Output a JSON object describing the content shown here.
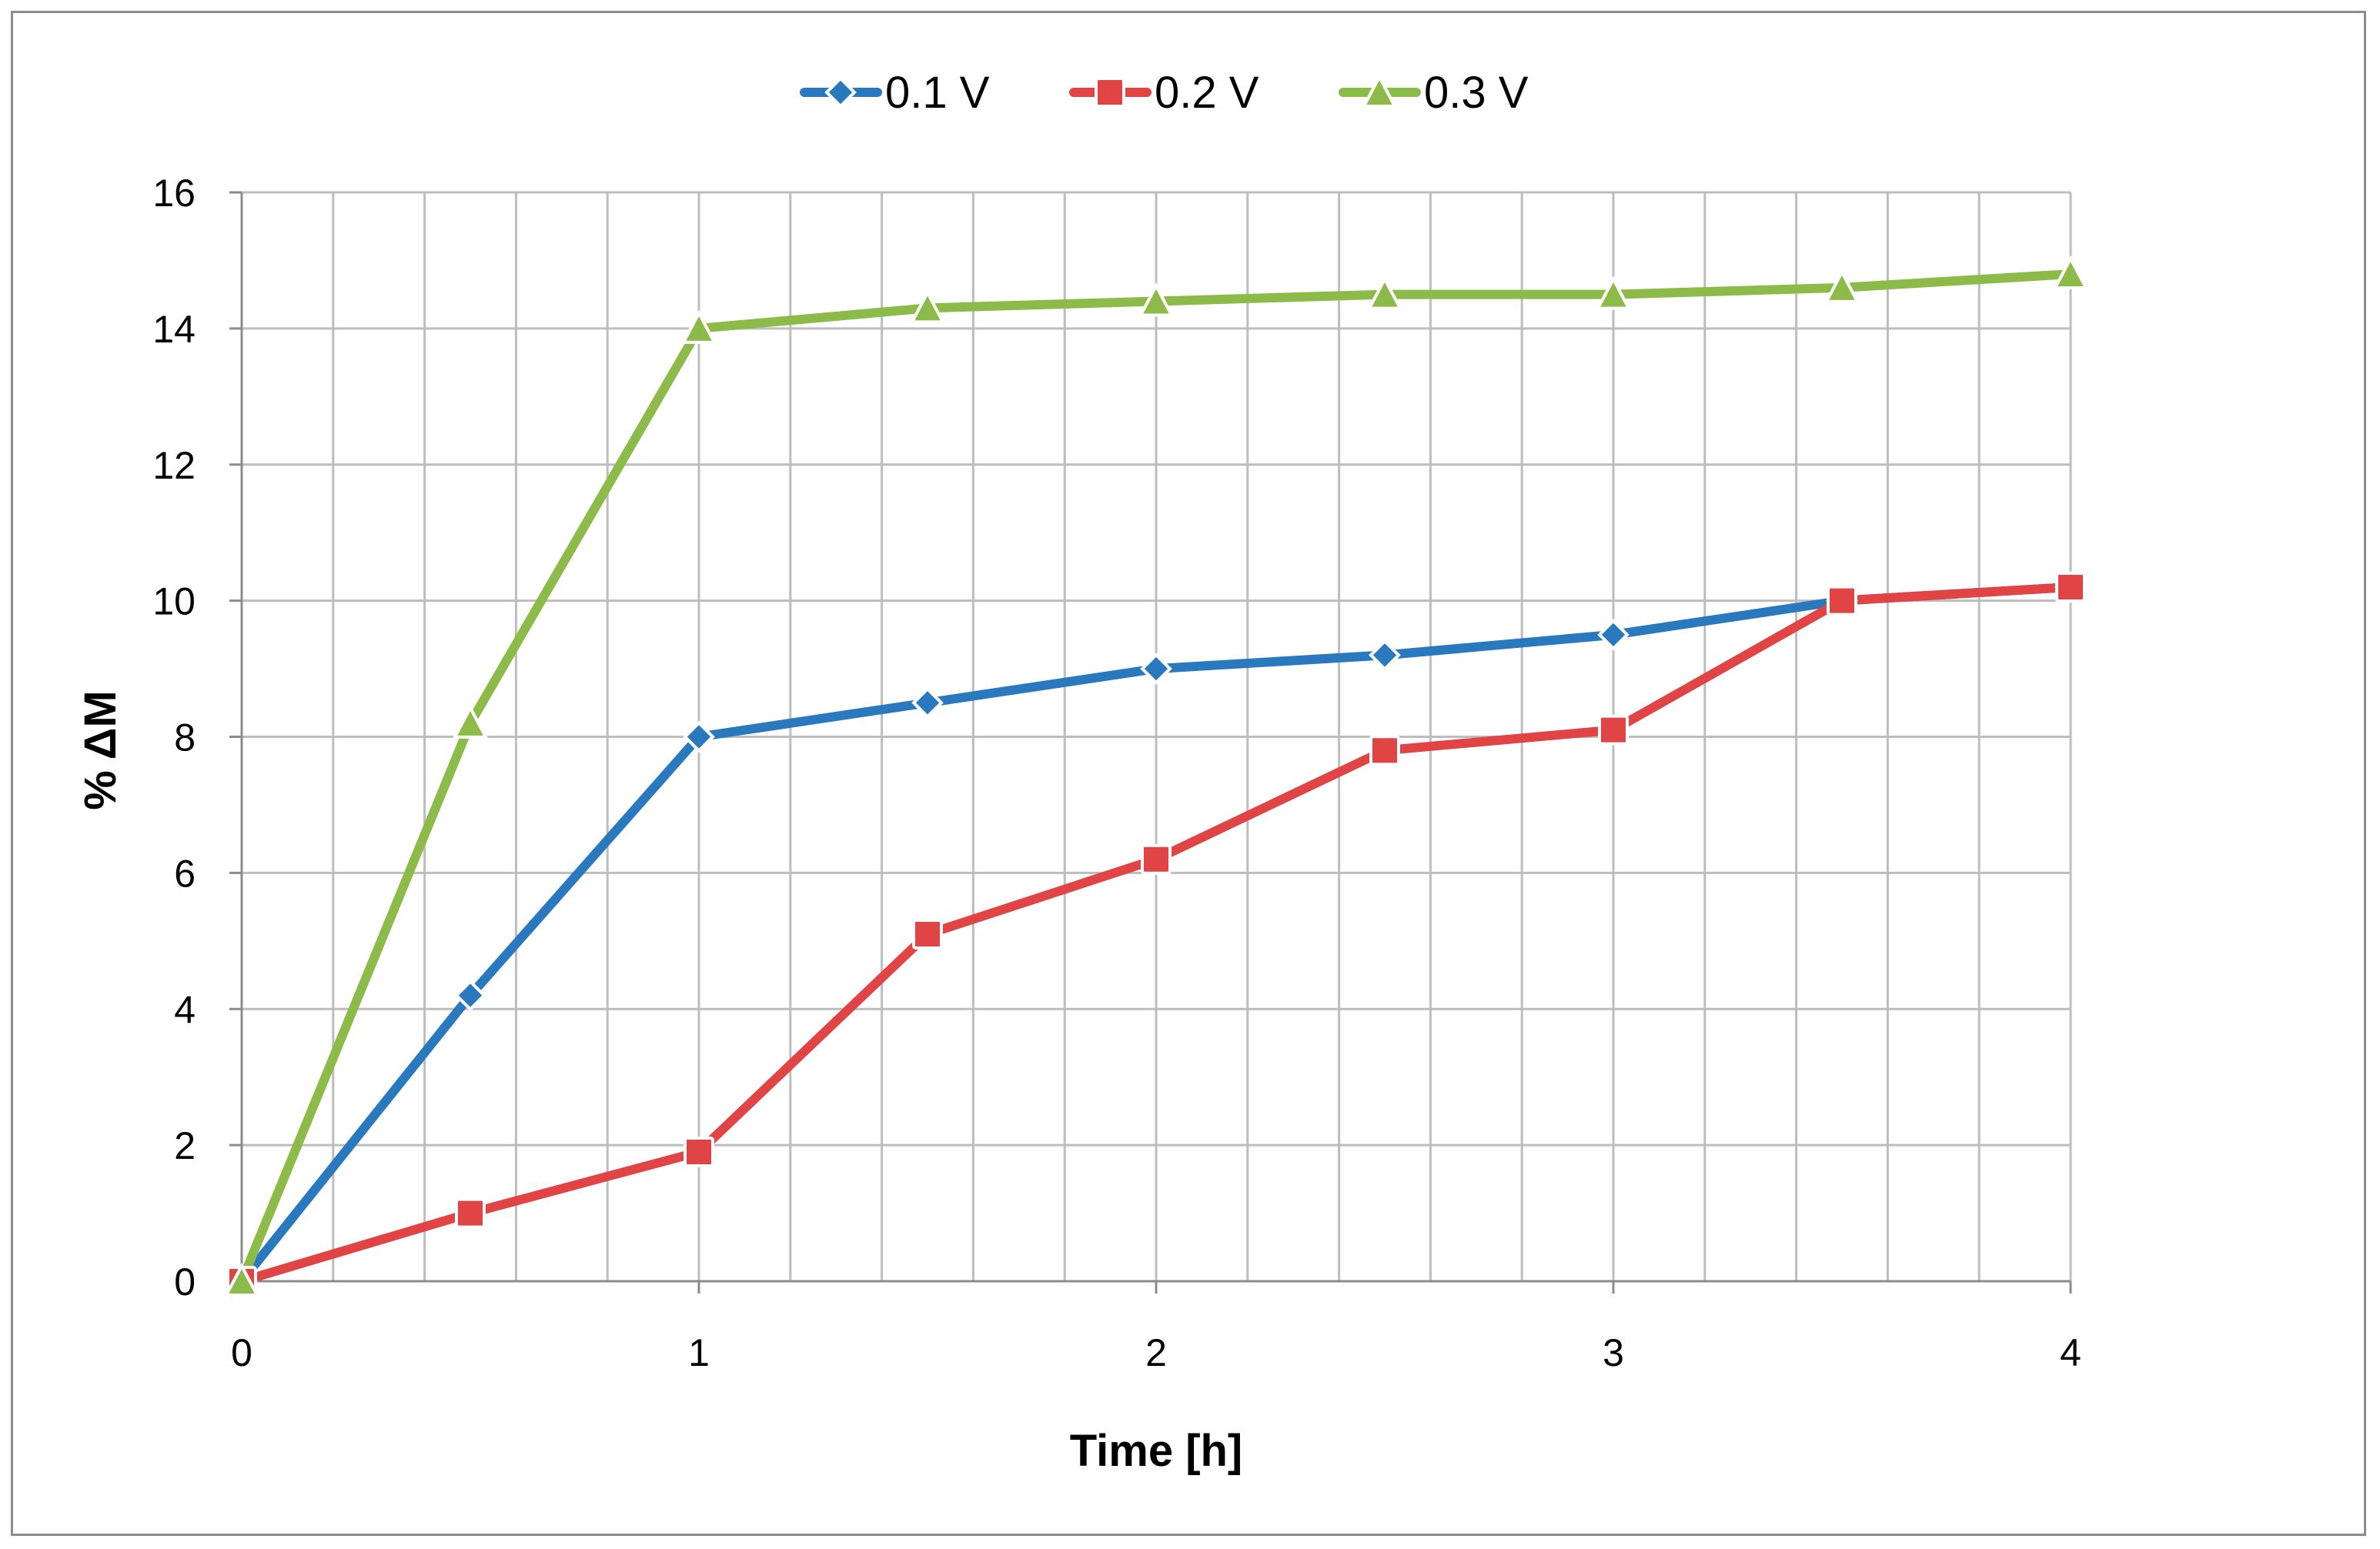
{
  "chart_data": {
    "type": "line",
    "title": "",
    "xlabel": "Time [h]",
    "ylabel": "% ΔM",
    "xlim": [
      0,
      4
    ],
    "ylim": [
      0,
      16
    ],
    "x_ticks": [
      "0",
      "1",
      "2",
      "3",
      "4"
    ],
    "y_ticks": [
      "0",
      "2",
      "4",
      "6",
      "8",
      "10",
      "12",
      "14",
      "16"
    ],
    "x_minor_step": 0.2,
    "y_major_step": 2,
    "grid": true,
    "legend_position": "top-center",
    "x": [
      0,
      0.5,
      1,
      1.5,
      2,
      2.5,
      3,
      3.5,
      4
    ],
    "series": [
      {
        "name": "0.1 V",
        "color": "#2a78be",
        "marker": "diamond",
        "values": [
          0,
          4.2,
          8.0,
          8.5,
          9.0,
          9.2,
          9.5,
          10.0,
          10.2
        ]
      },
      {
        "name": "0.2 V",
        "color": "#e04444",
        "marker": "square",
        "values": [
          0,
          1.0,
          1.9,
          5.1,
          6.2,
          7.8,
          8.1,
          10.0,
          10.2
        ]
      },
      {
        "name": "0.3 V",
        "color": "#8cbb4a",
        "marker": "triangle",
        "values": [
          0,
          8.2,
          14.0,
          14.3,
          14.4,
          14.5,
          14.5,
          14.6,
          14.8
        ]
      }
    ]
  }
}
